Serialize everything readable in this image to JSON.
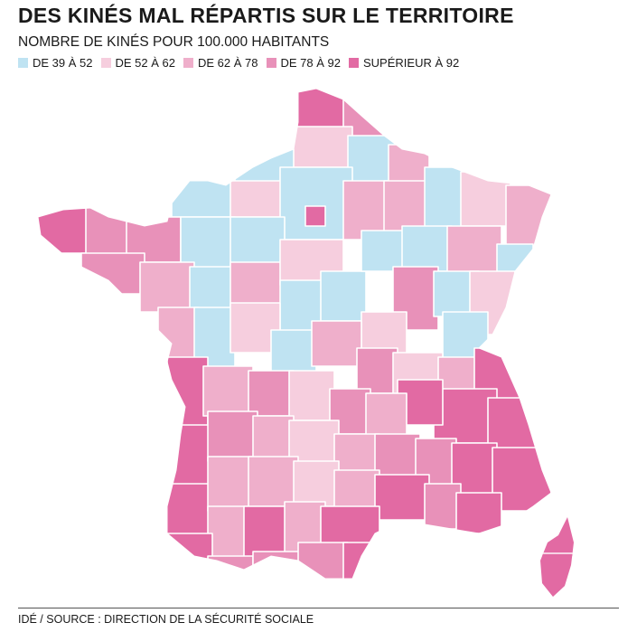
{
  "title": "DES KINÉS MAL RÉPARTIS SUR LE TERRITOIRE",
  "subtitle": "NOMBRE DE KINÉS POUR 100.000 HABITANTS",
  "legend": [
    {
      "label": "DE 39 À 52",
      "color": "#bfe3f2"
    },
    {
      "label": "DE 52 À 62",
      "color": "#f6cede"
    },
    {
      "label": "DE 62 À 78",
      "color": "#efafcb"
    },
    {
      "label": "DE 78 À 92",
      "color": "#e891b9"
    },
    {
      "label": "SUPÉRIEUR À 92",
      "color": "#e26aa3"
    }
  ],
  "source": "IDÉ / SOURCE : DIRECTION DE LA SÉCURITÉ SOCIALE"
}
